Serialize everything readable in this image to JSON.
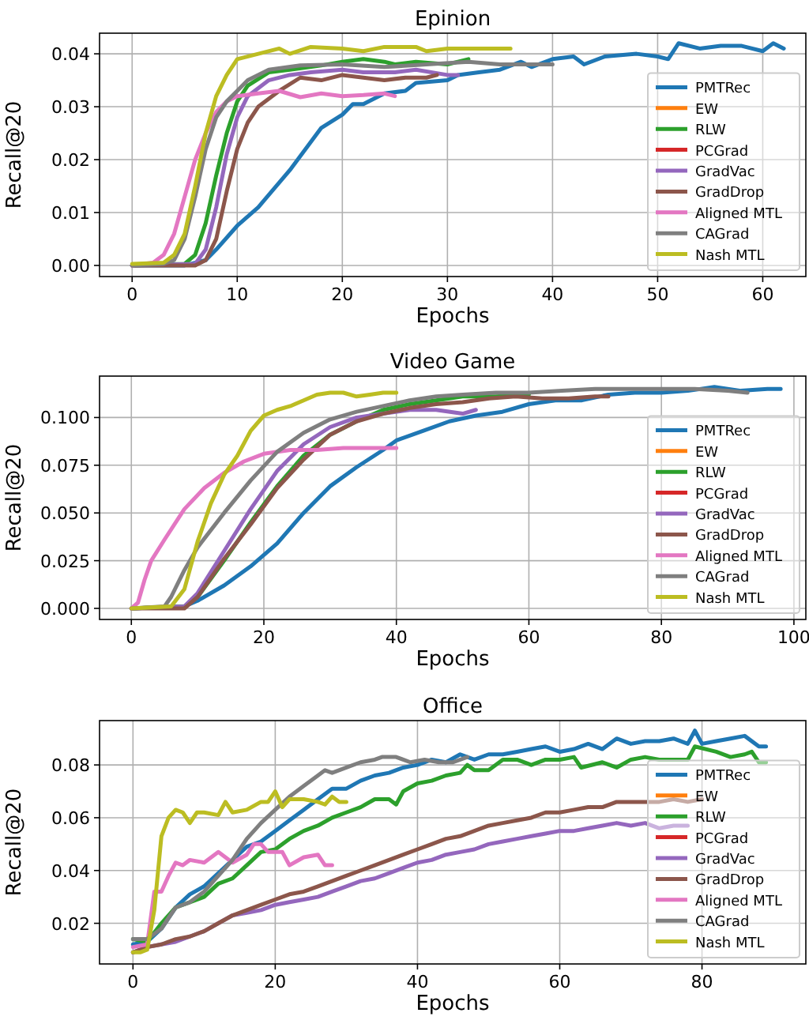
{
  "chart_data": [
    {
      "type": "line",
      "title": "Epinion",
      "xlabel": "Epochs",
      "ylabel": "Recall@20",
      "xlim": [
        -3.1,
        64.1
      ],
      "xticks": [
        0,
        10,
        20,
        30,
        40,
        50,
        60
      ],
      "ylim": [
        -0.0021,
        0.0439
      ],
      "yticks": [
        {
          "value": 0,
          "label": "0.00"
        },
        {
          "value": 0.01,
          "label": "0.01"
        },
        {
          "value": 0.02,
          "label": "0.02"
        },
        {
          "value": 0.03,
          "label": "0.03"
        },
        {
          "value": 0.04,
          "label": "0.04"
        }
      ],
      "grid": true,
      "legend": "lower right",
      "series": [
        {
          "name": "PMTRec",
          "color": "#1f77b4",
          "x": [
            0,
            5,
            7,
            8,
            10,
            12,
            15,
            18,
            20,
            21,
            22,
            24,
            26,
            27,
            30,
            31,
            33,
            35,
            37,
            38,
            40,
            42,
            43,
            45,
            48,
            50,
            51,
            52,
            54,
            56,
            58,
            60,
            61,
            62
          ],
          "values": [
            0,
            0,
            0.001,
            0.003,
            0.0075,
            0.011,
            0.018,
            0.026,
            0.0285,
            0.0305,
            0.0305,
            0.0325,
            0.033,
            0.0345,
            0.035,
            0.036,
            0.0365,
            0.037,
            0.0385,
            0.0375,
            0.039,
            0.0395,
            0.038,
            0.0395,
            0.04,
            0.0395,
            0.039,
            0.042,
            0.041,
            0.0415,
            0.0415,
            0.0405,
            0.042,
            0.041
          ]
        },
        {
          "name": "EW",
          "color": "#ff7f0e"
        },
        {
          "name": "RLW",
          "color": "#2ca02c",
          "x": [
            0,
            5,
            6,
            7,
            8,
            9,
            10,
            11,
            13,
            15,
            18,
            20,
            22,
            24,
            25,
            27,
            30,
            32
          ],
          "values": [
            0,
            0.0003,
            0.002,
            0.008,
            0.017,
            0.025,
            0.031,
            0.034,
            0.0365,
            0.037,
            0.0378,
            0.0385,
            0.039,
            0.0385,
            0.038,
            0.0385,
            0.038,
            0.039
          ]
        },
        {
          "name": "PCGrad",
          "color": "#d62728"
        },
        {
          "name": "GradVac",
          "color": "#9467bd",
          "x": [
            0,
            6,
            7,
            8,
            9,
            10,
            11,
            13,
            15,
            17,
            20,
            22,
            25,
            27,
            30,
            31
          ],
          "values": [
            0,
            0.0003,
            0.003,
            0.011,
            0.021,
            0.028,
            0.032,
            0.035,
            0.036,
            0.0365,
            0.037,
            0.0365,
            0.0365,
            0.037,
            0.036,
            0.036
          ]
        },
        {
          "name": "GradDrop",
          "color": "#8c564b",
          "x": [
            0,
            6,
            7,
            8,
            9,
            10,
            11,
            12,
            14,
            16,
            18,
            20,
            22,
            24,
            26,
            28,
            29
          ],
          "values": [
            0,
            0,
            0.001,
            0.005,
            0.014,
            0.022,
            0.027,
            0.03,
            0.033,
            0.0355,
            0.035,
            0.036,
            0.0355,
            0.035,
            0.0355,
            0.0355,
            0.036
          ]
        },
        {
          "name": "Aligned MTL",
          "color": "#e377c2",
          "x": [
            0,
            2,
            3,
            4,
            5,
            6,
            7,
            8,
            9,
            10,
            12,
            14,
            16,
            18,
            20,
            22,
            24,
            25
          ],
          "values": [
            0,
            0.0005,
            0.002,
            0.006,
            0.013,
            0.02,
            0.025,
            0.029,
            0.031,
            0.032,
            0.0325,
            0.033,
            0.0318,
            0.0325,
            0.032,
            0.0322,
            0.0325,
            0.032
          ]
        },
        {
          "name": "CAGrad",
          "color": "#7f7f7f",
          "x": [
            0,
            3,
            4,
            5,
            6,
            7,
            8,
            9,
            10,
            11,
            13,
            16,
            20,
            24,
            28,
            32,
            35,
            38,
            40
          ],
          "values": [
            0,
            0.0003,
            0.001,
            0.005,
            0.013,
            0.022,
            0.028,
            0.031,
            0.033,
            0.035,
            0.037,
            0.0378,
            0.038,
            0.0375,
            0.038,
            0.0385,
            0.038,
            0.038,
            0.038
          ]
        },
        {
          "name": "Nash MTL",
          "color": "#bcbd22",
          "x": [
            0,
            3,
            4,
            5,
            6,
            7,
            8,
            9,
            10,
            12,
            14,
            15,
            17,
            20,
            22,
            24,
            27,
            28,
            30,
            33,
            36
          ],
          "values": [
            0.0003,
            0.0005,
            0.002,
            0.006,
            0.015,
            0.025,
            0.032,
            0.036,
            0.039,
            0.04,
            0.041,
            0.04,
            0.0413,
            0.041,
            0.0405,
            0.0413,
            0.0413,
            0.0405,
            0.041,
            0.041,
            0.041
          ]
        }
      ]
    },
    {
      "type": "line",
      "title": "Video Game",
      "xlabel": "Epochs",
      "ylabel": "Recall@20",
      "xlim": [
        -4.8,
        101.8
      ],
      "xticks": [
        0,
        20,
        40,
        60,
        80,
        100
      ],
      "ylim": [
        -0.0058,
        0.1217
      ],
      "yticks": [
        {
          "value": 0,
          "label": "0.000"
        },
        {
          "value": 0.025,
          "label": "0.025"
        },
        {
          "value": 0.05,
          "label": "0.050"
        },
        {
          "value": 0.075,
          "label": "0.075"
        },
        {
          "value": 0.1,
          "label": "0.100"
        }
      ],
      "grid": true,
      "legend": "lower right",
      "series": [
        {
          "name": "PMTRec",
          "color": "#1f77b4",
          "x": [
            0,
            8,
            10,
            14,
            18,
            22,
            26,
            30,
            34,
            38,
            40,
            44,
            48,
            52,
            56,
            60,
            64,
            68,
            72,
            76,
            80,
            84,
            88,
            92,
            96,
            98
          ],
          "values": [
            0,
            0.001,
            0.004,
            0.012,
            0.022,
            0.034,
            0.05,
            0.064,
            0.074,
            0.083,
            0.088,
            0.093,
            0.098,
            0.101,
            0.103,
            0.107,
            0.109,
            0.109,
            0.112,
            0.113,
            0.113,
            0.114,
            0.116,
            0.114,
            0.115,
            0.115
          ]
        },
        {
          "name": "EW",
          "color": "#ff7f0e"
        },
        {
          "name": "RLW",
          "color": "#2ca02c",
          "x": [
            0,
            8,
            10,
            14,
            18,
            22,
            26,
            30,
            34,
            38,
            42,
            46,
            50,
            55,
            60
          ],
          "values": [
            0,
            0.001,
            0.006,
            0.025,
            0.045,
            0.064,
            0.08,
            0.091,
            0.098,
            0.104,
            0.107,
            0.109,
            0.111,
            0.111,
            0.112
          ]
        },
        {
          "name": "PCGrad",
          "color": "#d62728"
        },
        {
          "name": "GradVac",
          "color": "#9467bd",
          "x": [
            0,
            8,
            10,
            14,
            18,
            22,
            26,
            30,
            34,
            38,
            42,
            46,
            50,
            52
          ],
          "values": [
            0,
            0.001,
            0.008,
            0.03,
            0.052,
            0.072,
            0.086,
            0.095,
            0.1,
            0.102,
            0.104,
            0.104,
            0.102,
            0.104
          ]
        },
        {
          "name": "GradDrop",
          "color": "#8c564b",
          "x": [
            0,
            8,
            10,
            14,
            18,
            22,
            26,
            30,
            34,
            38,
            42,
            46,
            50,
            54,
            58,
            62,
            66,
            70,
            72
          ],
          "values": [
            0,
            0,
            0.006,
            0.026,
            0.044,
            0.063,
            0.078,
            0.091,
            0.098,
            0.102,
            0.105,
            0.107,
            0.108,
            0.11,
            0.111,
            0.11,
            0.11,
            0.111,
            0.111
          ]
        },
        {
          "name": "Aligned MTL",
          "color": "#e377c2",
          "x": [
            0,
            1,
            2,
            3,
            5,
            8,
            11,
            14,
            17,
            20,
            24,
            28,
            32,
            36,
            40
          ],
          "values": [
            0,
            0.003,
            0.015,
            0.025,
            0.036,
            0.052,
            0.063,
            0.071,
            0.077,
            0.081,
            0.083,
            0.083,
            0.084,
            0.084,
            0.084
          ]
        },
        {
          "name": "CAGrad",
          "color": "#7f7f7f",
          "x": [
            0,
            5,
            6,
            8,
            10,
            14,
            18,
            22,
            26,
            30,
            34,
            38,
            42,
            46,
            50,
            55,
            60,
            65,
            70,
            75,
            80,
            85,
            90,
            93
          ],
          "values": [
            0,
            0.001,
            0.006,
            0.02,
            0.032,
            0.05,
            0.067,
            0.082,
            0.092,
            0.099,
            0.103,
            0.106,
            0.109,
            0.111,
            0.112,
            0.113,
            0.113,
            0.114,
            0.115,
            0.115,
            0.115,
            0.115,
            0.114,
            0.113
          ]
        },
        {
          "name": "Nash MTL",
          "color": "#bcbd22",
          "x": [
            0,
            6,
            8,
            10,
            12,
            14,
            16,
            18,
            20,
            22,
            24,
            26,
            28,
            30,
            32,
            34,
            36,
            38,
            40
          ],
          "values": [
            0,
            0.001,
            0.01,
            0.035,
            0.055,
            0.07,
            0.08,
            0.093,
            0.101,
            0.104,
            0.106,
            0.109,
            0.112,
            0.113,
            0.113,
            0.111,
            0.112,
            0.113,
            0.113
          ]
        }
      ]
    },
    {
      "type": "line",
      "title": "Office",
      "xlabel": "Epochs",
      "ylabel": "Recall@20",
      "xlim": [
        -4.7,
        94.6
      ],
      "xticks": [
        0,
        20,
        40,
        60,
        80
      ],
      "ylim": [
        0.0046,
        0.0968
      ],
      "yticks": [
        {
          "value": 0.02,
          "label": "0.02"
        },
        {
          "value": 0.04,
          "label": "0.04"
        },
        {
          "value": 0.06,
          "label": "0.06"
        },
        {
          "value": 0.08,
          "label": "0.08"
        }
      ],
      "grid": true,
      "legend": "lower right",
      "series": [
        {
          "name": "PMTRec",
          "color": "#1f77b4",
          "x": [
            0,
            2,
            4,
            6,
            8,
            10,
            12,
            14,
            16,
            18,
            20,
            22,
            24,
            26,
            28,
            30,
            32,
            34,
            36,
            38,
            40,
            42,
            44,
            46,
            48,
            50,
            52,
            54,
            56,
            58,
            60,
            62,
            64,
            66,
            68,
            70,
            72,
            74,
            76,
            78,
            79,
            80,
            82,
            84,
            86,
            88,
            89
          ],
          "values": [
            0.012,
            0.013,
            0.018,
            0.026,
            0.031,
            0.034,
            0.039,
            0.044,
            0.049,
            0.051,
            0.055,
            0.059,
            0.063,
            0.067,
            0.071,
            0.071,
            0.074,
            0.076,
            0.077,
            0.079,
            0.08,
            0.082,
            0.081,
            0.084,
            0.082,
            0.084,
            0.084,
            0.085,
            0.086,
            0.087,
            0.085,
            0.086,
            0.088,
            0.086,
            0.09,
            0.088,
            0.089,
            0.089,
            0.09,
            0.088,
            0.093,
            0.088,
            0.089,
            0.09,
            0.091,
            0.087,
            0.087
          ]
        },
        {
          "name": "EW",
          "color": "#ff7f0e"
        },
        {
          "name": "RLW",
          "color": "#2ca02c",
          "x": [
            0,
            2,
            4,
            6,
            8,
            10,
            12,
            14,
            16,
            18,
            20,
            22,
            24,
            26,
            28,
            30,
            32,
            34,
            36,
            37,
            38,
            40,
            42,
            44,
            46,
            47,
            48,
            50,
            52,
            54,
            56,
            58,
            60,
            62,
            63,
            66,
            68,
            70,
            72,
            74,
            76,
            78,
            79,
            82,
            84,
            86,
            87,
            88,
            89
          ],
          "values": [
            0.014,
            0.013,
            0.02,
            0.026,
            0.028,
            0.03,
            0.035,
            0.037,
            0.042,
            0.047,
            0.048,
            0.052,
            0.055,
            0.057,
            0.06,
            0.062,
            0.064,
            0.067,
            0.067,
            0.065,
            0.07,
            0.073,
            0.074,
            0.076,
            0.077,
            0.08,
            0.078,
            0.078,
            0.082,
            0.082,
            0.08,
            0.082,
            0.082,
            0.083,
            0.079,
            0.081,
            0.079,
            0.082,
            0.083,
            0.082,
            0.082,
            0.082,
            0.087,
            0.085,
            0.083,
            0.084,
            0.085,
            0.081,
            0.081
          ]
        },
        {
          "name": "PCGrad",
          "color": "#d62728"
        },
        {
          "name": "GradVac",
          "color": "#9467bd",
          "x": [
            0,
            2,
            4,
            6,
            8,
            10,
            12,
            14,
            16,
            18,
            20,
            22,
            24,
            26,
            28,
            30,
            32,
            34,
            36,
            38,
            40,
            42,
            44,
            46,
            48,
            50,
            52,
            54,
            56,
            58,
            60,
            62,
            64,
            66,
            68,
            70,
            72,
            74,
            76,
            78
          ],
          "values": [
            0.009,
            0.011,
            0.012,
            0.013,
            0.015,
            0.017,
            0.02,
            0.023,
            0.024,
            0.025,
            0.027,
            0.028,
            0.029,
            0.03,
            0.032,
            0.034,
            0.036,
            0.037,
            0.039,
            0.041,
            0.043,
            0.044,
            0.046,
            0.047,
            0.048,
            0.05,
            0.051,
            0.052,
            0.053,
            0.054,
            0.055,
            0.055,
            0.056,
            0.057,
            0.058,
            0.057,
            0.058,
            0.056,
            0.057,
            0.057
          ]
        },
        {
          "name": "GradDrop",
          "color": "#8c564b",
          "x": [
            0,
            2,
            4,
            6,
            8,
            10,
            12,
            14,
            16,
            18,
            20,
            22,
            24,
            26,
            28,
            30,
            32,
            34,
            36,
            38,
            40,
            42,
            44,
            46,
            48,
            50,
            52,
            54,
            56,
            58,
            60,
            62,
            64,
            66,
            68,
            70,
            72,
            74,
            76,
            78,
            80
          ],
          "values": [
            0.009,
            0.011,
            0.012,
            0.014,
            0.015,
            0.017,
            0.02,
            0.023,
            0.025,
            0.027,
            0.029,
            0.031,
            0.032,
            0.034,
            0.036,
            0.038,
            0.04,
            0.042,
            0.044,
            0.046,
            0.048,
            0.05,
            0.052,
            0.053,
            0.055,
            0.057,
            0.058,
            0.059,
            0.06,
            0.062,
            0.062,
            0.063,
            0.064,
            0.064,
            0.066,
            0.066,
            0.066,
            0.066,
            0.067,
            0.066,
            0.067
          ]
        },
        {
          "name": "Aligned MTL",
          "color": "#e377c2",
          "x": [
            0,
            2,
            3,
            4,
            5,
            6,
            7,
            8,
            10,
            12,
            14,
            16,
            17,
            18,
            19,
            20,
            21,
            22,
            24,
            26,
            27,
            28
          ],
          "values": [
            0.011,
            0.012,
            0.032,
            0.032,
            0.038,
            0.043,
            0.042,
            0.044,
            0.043,
            0.047,
            0.043,
            0.046,
            0.05,
            0.05,
            0.047,
            0.047,
            0.047,
            0.042,
            0.045,
            0.046,
            0.042,
            0.042
          ]
        },
        {
          "name": "CAGrad",
          "color": "#7f7f7f",
          "x": [
            0,
            2,
            4,
            6,
            8,
            10,
            12,
            14,
            16,
            18,
            20,
            22,
            24,
            26,
            27,
            28,
            30,
            32,
            34,
            35,
            37,
            39,
            41,
            43,
            45,
            47
          ],
          "values": [
            0.014,
            0.014,
            0.018,
            0.026,
            0.028,
            0.032,
            0.038,
            0.044,
            0.052,
            0.058,
            0.063,
            0.068,
            0.072,
            0.076,
            0.078,
            0.077,
            0.079,
            0.081,
            0.082,
            0.083,
            0.083,
            0.081,
            0.082,
            0.081,
            0.081,
            0.083
          ]
        },
        {
          "name": "Nash MTL",
          "color": "#bcbd22",
          "x": [
            0,
            1,
            2,
            3,
            4,
            5,
            6,
            7,
            8,
            9,
            10,
            12,
            13,
            14,
            16,
            18,
            19,
            20,
            21,
            22,
            24,
            26,
            27,
            28,
            29,
            30
          ],
          "values": [
            0.009,
            0.009,
            0.01,
            0.025,
            0.053,
            0.06,
            0.063,
            0.062,
            0.058,
            0.062,
            0.062,
            0.061,
            0.066,
            0.062,
            0.063,
            0.066,
            0.066,
            0.07,
            0.064,
            0.067,
            0.067,
            0.066,
            0.065,
            0.068,
            0.066,
            0.066
          ]
        }
      ]
    }
  ]
}
